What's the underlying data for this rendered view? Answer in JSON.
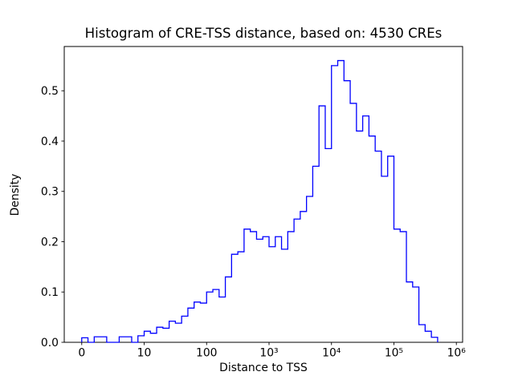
{
  "figure": {
    "title": "Histogram of CRE-TSS distance, based on: 4530 CREs",
    "xlabel": "Distance to TSS",
    "ylabel": "Density"
  },
  "chart_data": {
    "type": "bar",
    "subtype": "step-histogram",
    "title": "Histogram of CRE-TSS distance, based on: 4530 CREs",
    "xlabel": "Distance to TSS",
    "ylabel": "Density",
    "legend": "none",
    "grid": false,
    "line_color": "#0000ff",
    "x_scale": "log10 decades (tick '0' marks 10^0 = 1)",
    "x_tick_labels": [
      "0",
      "10",
      "100",
      "10³",
      "10⁴",
      "10⁵",
      "10⁶"
    ],
    "x_tick_decades": [
      0,
      1,
      2,
      3,
      4,
      5,
      6
    ],
    "y_tick_labels": [
      "0.0",
      "0.1",
      "0.2",
      "0.3",
      "0.4",
      "0.5"
    ],
    "y_ticks": [
      0.0,
      0.1,
      0.2,
      0.3,
      0.4,
      0.5
    ],
    "xlim_decades": [
      -0.28,
      6.1
    ],
    "ylim": [
      0,
      0.588
    ],
    "bin_start_decade": 0.0,
    "bin_width_decades": 0.1,
    "densities": [
      0.009,
      0.0,
      0.011,
      0.011,
      0.0,
      0.0,
      0.011,
      0.011,
      0.0,
      0.013,
      0.022,
      0.018,
      0.03,
      0.028,
      0.042,
      0.038,
      0.052,
      0.068,
      0.08,
      0.078,
      0.1,
      0.105,
      0.09,
      0.13,
      0.175,
      0.18,
      0.225,
      0.22,
      0.205,
      0.21,
      0.19,
      0.21,
      0.185,
      0.22,
      0.245,
      0.26,
      0.29,
      0.35,
      0.47,
      0.385,
      0.55,
      0.56,
      0.52,
      0.475,
      0.42,
      0.45,
      0.41,
      0.38,
      0.33,
      0.37,
      0.225,
      0.22,
      0.12,
      0.11,
      0.035,
      0.022,
      0.01
    ]
  }
}
